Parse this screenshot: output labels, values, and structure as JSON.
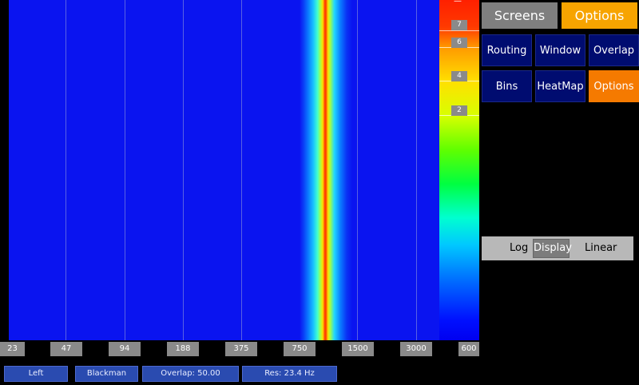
{
  "scale": {
    "ticks": [
      "7",
      "6",
      "4",
      "2"
    ],
    "top_mark": "—"
  },
  "axis": {
    "labels": [
      "23",
      "47",
      "94",
      "188",
      "375",
      "750",
      "1500",
      "3000",
      "600"
    ]
  },
  "status": {
    "channel": "Left",
    "window": "Blackman",
    "overlap": "Overlap: 50.00",
    "resolution": "Res: 23.4 Hz"
  },
  "header_tabs": {
    "screens": "Screens",
    "options": "Options"
  },
  "menu": {
    "routing": "Routing",
    "window": "Window",
    "overlap": "Overlap",
    "bins": "Bins",
    "heatmap": "HeatMap",
    "options": "Options"
  },
  "display": {
    "left_label": "Log",
    "knob_label": "Display",
    "right_label": "Linear"
  },
  "colors": {
    "plot_background": "#0a14f0",
    "active_button": "#f57a00",
    "inactive_button": "#000c70",
    "screens_tab": "#7f7f7f",
    "options_tab": "#f7a400",
    "status_bar": "#2a4bb0"
  }
}
